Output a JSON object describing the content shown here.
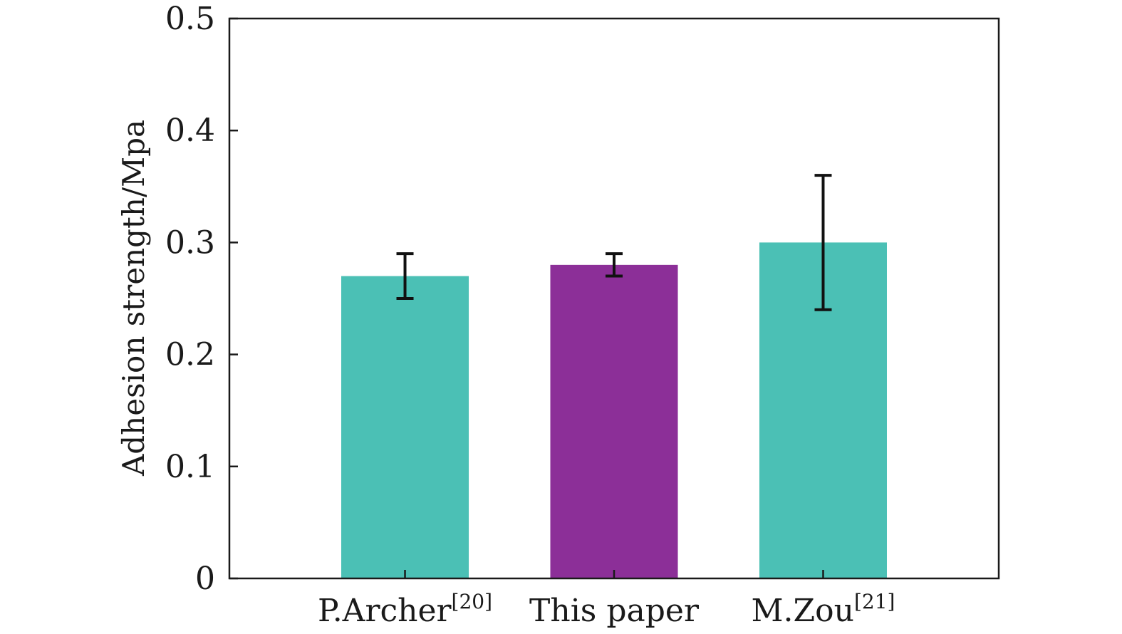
{
  "chart_data": {
    "type": "bar",
    "title": "",
    "xlabel": "",
    "ylabel": "Adhesion strength/Mpa",
    "ylim": [
      0,
      0.5
    ],
    "xlim": [
      0.16,
      3.84
    ],
    "yticks": [
      0,
      0.1,
      0.2,
      0.3,
      0.4,
      0.5
    ],
    "ytick_labels": [
      "0",
      "0.1",
      "0.2",
      "0.3",
      "0.4",
      "0.5"
    ],
    "grid": false,
    "categories": [
      {
        "label": "P.Archer",
        "ref": "[20]"
      },
      {
        "label": "This paper",
        "ref": ""
      },
      {
        "label": "M.Zou",
        "ref": "[21]"
      }
    ],
    "values": [
      0.27,
      0.28,
      0.3
    ],
    "error_low": [
      0.25,
      0.27,
      0.24
    ],
    "error_high": [
      0.29,
      0.29,
      0.36
    ],
    "bar_width": 0.61,
    "colors": [
      "#4bc0b5",
      "#8c2f98",
      "#4bc0b5"
    ],
    "axis_color": "#1a1a1a",
    "error_color": "#111111"
  }
}
